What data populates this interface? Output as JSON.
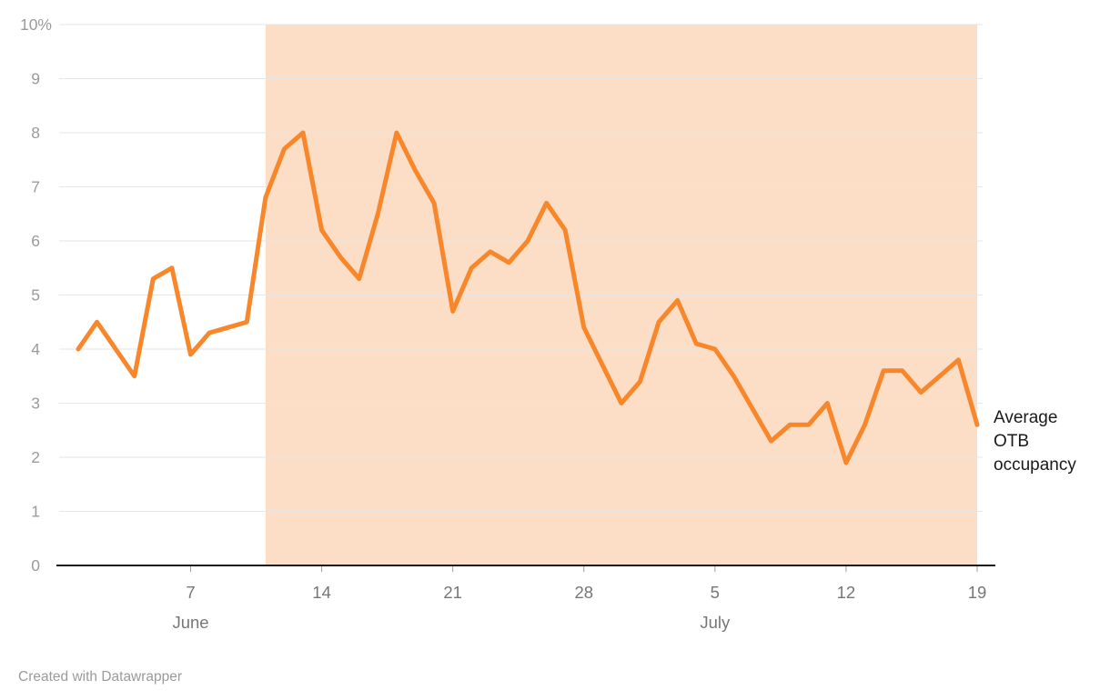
{
  "chart_data": {
    "type": "line",
    "series_label": "Average OTB occupancy",
    "ylim": [
      0,
      10
    ],
    "y_ticks": [
      "0",
      "1",
      "2",
      "3",
      "4",
      "5",
      "6",
      "7",
      "8",
      "9",
      "10%"
    ],
    "dates": [
      "Jun 1",
      "Jun 2",
      "Jun 3",
      "Jun 4",
      "Jun 5",
      "Jun 6",
      "Jun 7",
      "Jun 8",
      "Jun 9",
      "Jun 10",
      "Jun 11",
      "Jun 12",
      "Jun 13",
      "Jun 14",
      "Jun 15",
      "Jun 16",
      "Jun 17",
      "Jun 18",
      "Jun 19",
      "Jun 20",
      "Jun 21",
      "Jun 22",
      "Jun 23",
      "Jun 24",
      "Jun 25",
      "Jun 26",
      "Jun 27",
      "Jun 28",
      "Jun 29",
      "Jun 30",
      "Jul 1",
      "Jul 2",
      "Jul 3",
      "Jul 4",
      "Jul 5",
      "Jul 6",
      "Jul 7",
      "Jul 8",
      "Jul 9",
      "Jul 10",
      "Jul 11",
      "Jul 12",
      "Jul 13",
      "Jul 14",
      "Jul 15",
      "Jul 16",
      "Jul 17",
      "Jul 18",
      "Jul 19"
    ],
    "values": [
      4.0,
      4.5,
      4.0,
      3.5,
      5.3,
      5.5,
      3.9,
      4.3,
      4.4,
      4.5,
      6.8,
      7.7,
      8.0,
      6.2,
      5.7,
      5.3,
      6.5,
      8.0,
      7.3,
      6.7,
      4.7,
      5.5,
      5.8,
      5.6,
      6.0,
      6.7,
      6.2,
      4.4,
      3.7,
      3.0,
      3.4,
      4.5,
      4.9,
      4.1,
      4.0,
      3.5,
      2.9,
      2.3,
      2.6,
      2.6,
      3.0,
      1.9,
      2.6,
      3.6,
      3.6,
      3.2,
      3.5,
      3.8,
      2.6
    ],
    "x_ticks": [
      {
        "index": 6,
        "label": "7"
      },
      {
        "index": 13,
        "label": "14"
      },
      {
        "index": 20,
        "label": "21"
      },
      {
        "index": 27,
        "label": "28"
      },
      {
        "index": 34,
        "label": "5"
      },
      {
        "index": 41,
        "label": "12"
      },
      {
        "index": 48,
        "label": "19"
      }
    ],
    "month_labels": [
      {
        "index": 6,
        "label": "June"
      },
      {
        "index": 34,
        "label": "July"
      }
    ],
    "highlight_region": {
      "start_index": 10,
      "end_index": 48,
      "start_date": "Jun 11",
      "end_date": "Jul 19"
    },
    "legend_position": "right-of-line-end",
    "grid": true,
    "colors": {
      "line": "#F8872B",
      "highlight": "#FCDEC6",
      "grid": "#E6E6E6",
      "axis": "#1A1A1A",
      "tick_text": "#9B9B9B",
      "x_text": "#767676",
      "label_text": "#1A1A1A"
    }
  },
  "footer": {
    "text": "Created with Datawrapper"
  }
}
